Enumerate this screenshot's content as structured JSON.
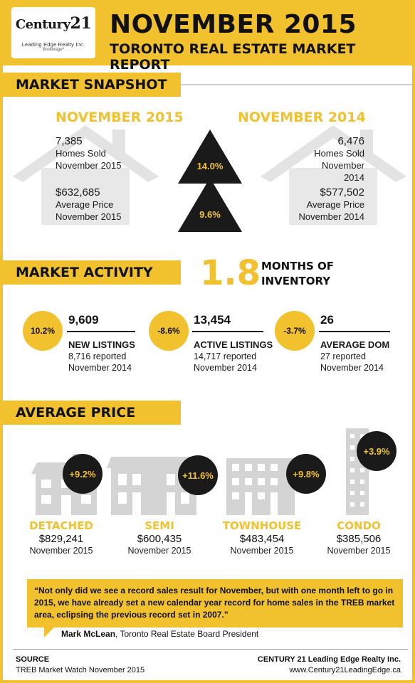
{
  "logo": {
    "brand": "Century",
    "brand_num": "21",
    "line1": "Leading Edge Realty Inc.",
    "line2": "Brokerage*"
  },
  "header": {
    "title": "NOVEMBER 2015",
    "subtitle": "TORONTO REAL ESTATE MARKET REPORT"
  },
  "snapshot": {
    "heading": "MARKET SNAPSHOT",
    "current": {
      "label": "NOVEMBER 2015",
      "homes_sold": "7,385",
      "homes_sold_label": "Homes Sold",
      "homes_sold_date": "November 2015",
      "avg_price": "$632,685",
      "avg_price_label": "Average Price",
      "avg_price_date": "November 2015"
    },
    "previous": {
      "label": "NOVEMBER 2014",
      "homes_sold": "6,476",
      "homes_sold_label": "Homes Sold",
      "homes_sold_date": "November 2014",
      "avg_price": "$577,502",
      "avg_price_label": "Average Price",
      "avg_price_date": "November 2014"
    },
    "change_sold": "14.0%",
    "change_price": "9.6%"
  },
  "activity": {
    "heading": "MARKET ACTIVITY",
    "months_value": "1.8",
    "months_line1": "MONTHS OF",
    "months_line2": "INVENTORY",
    "items": [
      {
        "badge": "10.2%",
        "value": "9,609",
        "label": "NEW LISTINGS",
        "reported": "8,716 reported",
        "date": "November 2014"
      },
      {
        "badge": "-8.6%",
        "value": "13,454",
        "label": "ACTIVE LISTINGS",
        "reported": "14,717 reported",
        "date": "November 2014"
      },
      {
        "badge": "-3.7%",
        "value": "26",
        "label": "AVERAGE DOM",
        "reported": "27 reported",
        "date": "November 2014"
      }
    ]
  },
  "avg_price": {
    "heading": "AVERAGE PRICE",
    "types": [
      {
        "name": "DETACHED",
        "price": "$829,241",
        "date": "November 2015",
        "change": "+9.2%",
        "icon": "detached-house-icon"
      },
      {
        "name": "SEMI",
        "price": "$600,435",
        "date": "November 2015",
        "change": "+11.6%",
        "icon": "semi-house-icon"
      },
      {
        "name": "TOWNHOUSE",
        "price": "$483,454",
        "date": "November 2015",
        "change": "+9.8%",
        "icon": "townhouse-icon"
      },
      {
        "name": "CONDO",
        "price": "$385,506",
        "date": "November 2015",
        "change": "+3.9%",
        "icon": "condo-tower-icon"
      }
    ]
  },
  "quote": {
    "text": "“Not only did we see a record sales result for November, but with one month left to go in 2015, we have already set a new calendar year record for home sales in the TREB market area, eclipsing the previous record set in 2007.”",
    "author": "Mark McLean",
    "author_title": ", Toronto Real Estate Board President"
  },
  "footer": {
    "source_label": "SOURCE",
    "source_text": "TREB Market Watch November 2015",
    "company": "CENTURY 21 Leading Edge Realty Inc.",
    "website": "www.Century21LeadingEdge.ca"
  },
  "colors": {
    "accent": "#f2c12e",
    "dark": "#1a1a1a",
    "house_gray": "#dcdcdc"
  }
}
